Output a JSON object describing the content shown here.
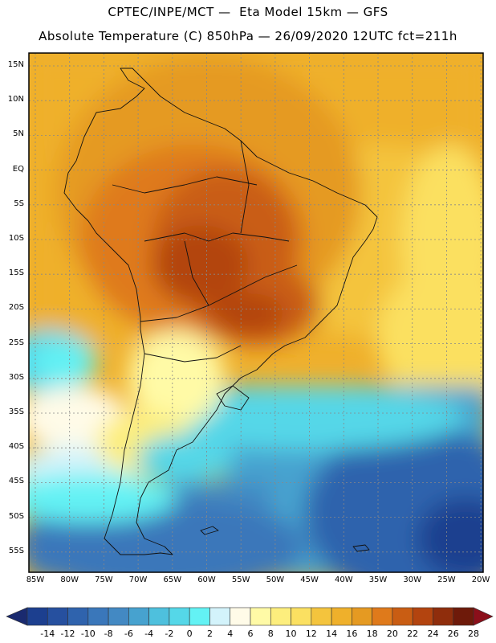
{
  "header": {
    "line1": "CPTEC/INPE/MCT —  Eta Model 15km — GFS",
    "line2": "Absolute Temperature (C) 850hPa — 26/09/2020 12UTC fct=211h"
  },
  "latitude_labels": [
    "15N",
    "10N",
    "5N",
    "EQ",
    "5S",
    "10S",
    "15S",
    "20S",
    "25S",
    "30S",
    "35S",
    "40S",
    "45S",
    "50S",
    "55S"
  ],
  "longitude_labels": [
    "85W",
    "80W",
    "75W",
    "70W",
    "65W",
    "60W",
    "55W",
    "50W",
    "45W",
    "40W",
    "35W",
    "30W",
    "25W",
    "20W"
  ],
  "colorbar": {
    "labels": [
      "-14",
      "-12",
      "-10",
      "-8",
      "-6",
      "-4",
      "-2",
      "0",
      "2",
      "4",
      "6",
      "8",
      "10",
      "12",
      "14",
      "16",
      "18",
      "20",
      "22",
      "24",
      "26",
      "28"
    ],
    "colors": [
      "#1c3f8f",
      "#26509f",
      "#2f63ad",
      "#3a77ba",
      "#4389c3",
      "#47a2cf",
      "#4ec0dd",
      "#55d7e8",
      "#63f2f4",
      "#d3f3fb",
      "#fffbe8",
      "#fffaa6",
      "#fdee7d",
      "#fbe061",
      "#f4c43d",
      "#efb02b",
      "#e59a22",
      "#df7a1b",
      "#c95d13",
      "#b3440f",
      "#8f2d0c",
      "#6e1a0a"
    ],
    "under_color": "#1a2a6f",
    "over_color": "#8b0f1a"
  }
}
